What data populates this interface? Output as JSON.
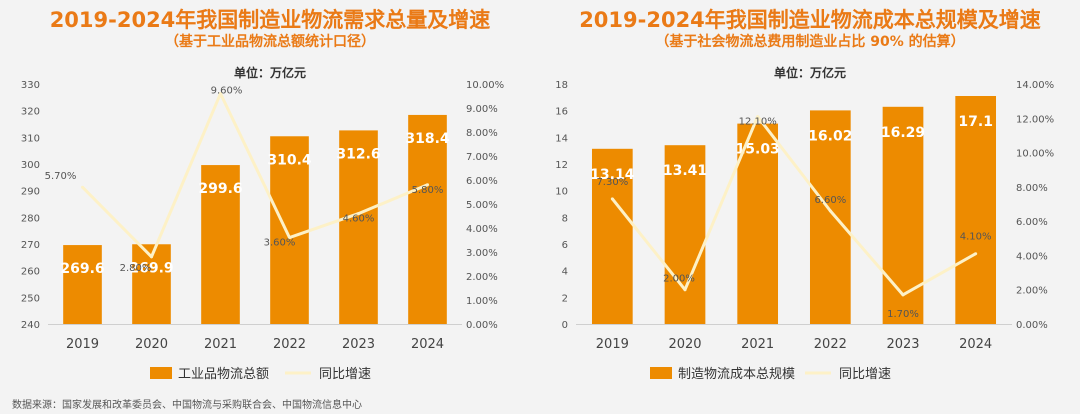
{
  "charts": [
    {
      "title": "2019-2024年我国制造业物流需求总量及增速",
      "subtitle": "（基于工业品物流总额统计口径）",
      "unit_label": "单位：万亿元",
      "legend": [
        "工业品物流总额",
        "同比增速"
      ]
    },
    {
      "title": "2019-2024年我国制造业物流成本总规模及增速",
      "subtitle": "（基于社会物流总费用制造业占比 90% 的估算）",
      "unit_label": "单位：万亿元",
      "legend": [
        "制造物流成本总规模",
        "同比增速"
      ]
    }
  ],
  "source_note": "数据来源：国家发展和改革委员会、中国物流与采购联合会、中国物流信息中心",
  "colors": {
    "bar": "#ed8b00",
    "line": "#fdf1c7",
    "title": "#ea7a16",
    "text": "#444444"
  },
  "chart_data": [
    {
      "type": "bar",
      "title": "2019-2024年我国制造业物流需求总量及增速",
      "categories": [
        "2019",
        "2020",
        "2021",
        "2022",
        "2023",
        "2024"
      ],
      "series": [
        {
          "name": "工业品物流总额",
          "type": "bar",
          "axis": "left",
          "values": [
            269.6,
            269.9,
            299.6,
            310.4,
            312.6,
            318.4
          ],
          "labels": [
            "269.6",
            "269.9",
            "299.6",
            "310.4",
            "312.6",
            "318.4"
          ]
        },
        {
          "name": "同比增速",
          "type": "line",
          "axis": "right",
          "values": [
            5.7,
            2.8,
            9.6,
            3.6,
            4.6,
            5.8
          ],
          "labels": [
            "5.70%",
            "2.80%",
            "9.60%",
            "3.60%",
            "4.60%",
            "5.80%"
          ]
        }
      ],
      "y_left": {
        "min": 240,
        "max": 330,
        "step": 10,
        "ticks": [
          "240",
          "250",
          "260",
          "270",
          "280",
          "290",
          "300",
          "310",
          "320",
          "330"
        ]
      },
      "y_right": {
        "min": 0,
        "max": 10,
        "step": 1,
        "ticks": [
          "0.00%",
          "1.00%",
          "2.00%",
          "3.00%",
          "4.00%",
          "5.00%",
          "6.00%",
          "7.00%",
          "8.00%",
          "9.00%",
          "10.00%"
        ]
      },
      "grid": false,
      "legend_position": "bottom"
    },
    {
      "type": "bar",
      "title": "2019-2024年我国制造业物流成本总规模及增速",
      "categories": [
        "2019",
        "2020",
        "2021",
        "2022",
        "2023",
        "2024"
      ],
      "series": [
        {
          "name": "制造物流成本总规模",
          "type": "bar",
          "axis": "left",
          "values": [
            13.14,
            13.41,
            15.03,
            16.02,
            16.29,
            17.1
          ],
          "labels": [
            "13.14",
            "13.41",
            "15.03",
            "16.02",
            "16.29",
            "17.1"
          ]
        },
        {
          "name": "同比增速",
          "type": "line",
          "axis": "right",
          "values": [
            7.3,
            2.0,
            12.1,
            6.6,
            1.7,
            4.1
          ],
          "labels": [
            "7.30%",
            "2.00%",
            "12.10%",
            "6.60%",
            "1.70%",
            "4.10%"
          ]
        }
      ],
      "y_left": {
        "min": 0,
        "max": 18,
        "step": 2,
        "ticks": [
          "0",
          "2",
          "4",
          "6",
          "8",
          "10",
          "12",
          "14",
          "16",
          "18"
        ]
      },
      "y_right": {
        "min": 0,
        "max": 14,
        "step": 2,
        "ticks": [
          "0.00%",
          "2.00%",
          "4.00%",
          "6.00%",
          "8.00%",
          "10.00%",
          "12.00%",
          "14.00%"
        ]
      },
      "grid": false,
      "legend_position": "bottom"
    }
  ]
}
